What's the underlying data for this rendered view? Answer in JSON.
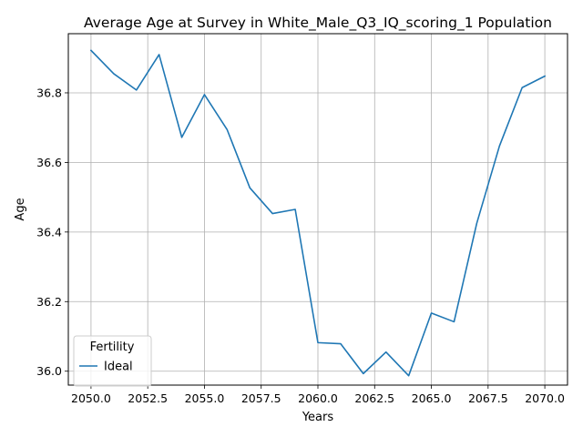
{
  "chart_data": {
    "type": "line",
    "title": "Average Age at Survey in White_Male_Q3_IQ_scoring_1 Population",
    "xlabel": "Years",
    "ylabel": "Age",
    "xlim": [
      2049.0,
      2071.0
    ],
    "ylim": [
      35.96,
      36.97
    ],
    "x_ticks": [
      2050.0,
      2052.5,
      2055.0,
      2057.5,
      2060.0,
      2062.5,
      2065.0,
      2067.5,
      2070.0
    ],
    "x_tick_labels": [
      "2050.0",
      "2052.5",
      "2055.0",
      "2057.5",
      "2060.0",
      "2062.5",
      "2065.0",
      "2067.5",
      "2070.0"
    ],
    "y_ticks": [
      36.0,
      36.2,
      36.4,
      36.6,
      36.8
    ],
    "y_tick_labels": [
      "36.0",
      "36.2",
      "36.4",
      "36.6",
      "36.8"
    ],
    "grid": true,
    "legend": {
      "title": "Fertility",
      "placement": "lower-left"
    },
    "x": [
      2050,
      2051,
      2052,
      2053,
      2054,
      2055,
      2056,
      2057,
      2058,
      2059,
      2060,
      2061,
      2062,
      2063,
      2064,
      2065,
      2066,
      2067,
      2068,
      2069,
      2070
    ],
    "series": [
      {
        "name": "Ideal",
        "color": "#1f77b4",
        "values": [
          36.922,
          36.855,
          36.808,
          36.91,
          36.672,
          36.795,
          36.694,
          36.527,
          36.453,
          36.465,
          36.082,
          36.079,
          35.993,
          36.055,
          35.987,
          36.167,
          36.142,
          36.425,
          36.647,
          36.815,
          36.848
        ]
      }
    ]
  }
}
